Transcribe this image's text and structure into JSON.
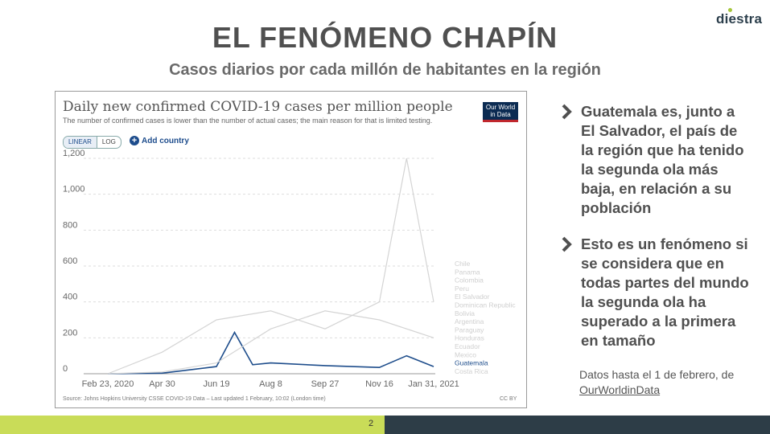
{
  "logo": {
    "name": "diestra",
    "tagline": ""
  },
  "slide": {
    "title": "EL FENÓMENO CHAPÍN",
    "subtitle": "Casos diarios por cada millón de habitantes en la región",
    "page_number": "2",
    "bullets": [
      "Guatemala es, junto a El Salvador, el país de la región que ha tenido la segunda ola más baja, en relación a su población",
      "Esto es un fenómeno si se considera que en todas partes del mundo la segunda ola ha superado a la primera en tamaño"
    ],
    "note_prefix": "Datos hasta el 1 de febrero, de",
    "note_link": "OurWorldinData"
  },
  "chart_data": {
    "type": "line",
    "title": "Daily new confirmed COVID-19 cases per million people",
    "subtitle": "The number of confirmed cases is lower than the number of actual cases; the main reason for that is limited testing.",
    "brand_line1": "Our World",
    "brand_line2": "in Data",
    "scale_linear": "LINEAR",
    "scale_log": "LOG",
    "add_country": "Add country",
    "ylim": [
      0,
      1200
    ],
    "y_ticks": [
      0,
      200,
      400,
      600,
      800,
      1000,
      1200
    ],
    "y_tick_labels": [
      "0",
      "200",
      "400",
      "600",
      "800",
      "1,000",
      "1,200"
    ],
    "x_tick_labels": [
      "Feb 23, 2020",
      "Apr 30",
      "Jun 19",
      "Aug 8",
      "Sep 27",
      "Nov 16",
      "Jan 31, 2021"
    ],
    "grid": "horizontal dotted",
    "highlight_color": "#1f4e8c",
    "background_series_color": "#d4d4d4",
    "legend_placement": "right",
    "legend": [
      "Chile",
      "Panama",
      "Colombia",
      "Peru",
      "El Salvador",
      "Dominican Republic",
      "Bolivia",
      "Argentina",
      "Paraguay",
      "Honduras",
      "Ecuador",
      "Mexico",
      "Guatemala",
      "Costa Rica"
    ],
    "highlighted_series": "Guatemala",
    "series": [
      {
        "name": "Guatemala",
        "x": [
          "Feb 23, 2020",
          "Apr 30",
          "Jun 19",
          "Jun 22",
          "Jun 25",
          "Aug 8",
          "Sep 27",
          "Nov 16",
          "Dec 30",
          "Jan 31, 2021"
        ],
        "values": [
          0,
          3,
          40,
          230,
          50,
          60,
          45,
          35,
          100,
          40
        ]
      },
      {
        "name": "Panama",
        "x": [
          "Feb 23, 2020",
          "Apr 30",
          "Jun 19",
          "Aug 8",
          "Sep 27",
          "Nov 16",
          "Jan 5, 2021",
          "Jan 31, 2021"
        ],
        "values": [
          0,
          120,
          300,
          350,
          250,
          400,
          1200,
          400
        ]
      },
      {
        "name": "Costa Rica",
        "x": [
          "Feb 23, 2020",
          "Apr 30",
          "Jun 19",
          "Aug 8",
          "Sep 27",
          "Nov 16",
          "Jan 31, 2021"
        ],
        "values": [
          0,
          10,
          60,
          250,
          350,
          300,
          200
        ]
      }
    ],
    "source": "Source: Johns Hopkins University CSSE COVID-19 Data – Last updated 1 February, 10:02 (London time)",
    "license": "CC BY"
  }
}
